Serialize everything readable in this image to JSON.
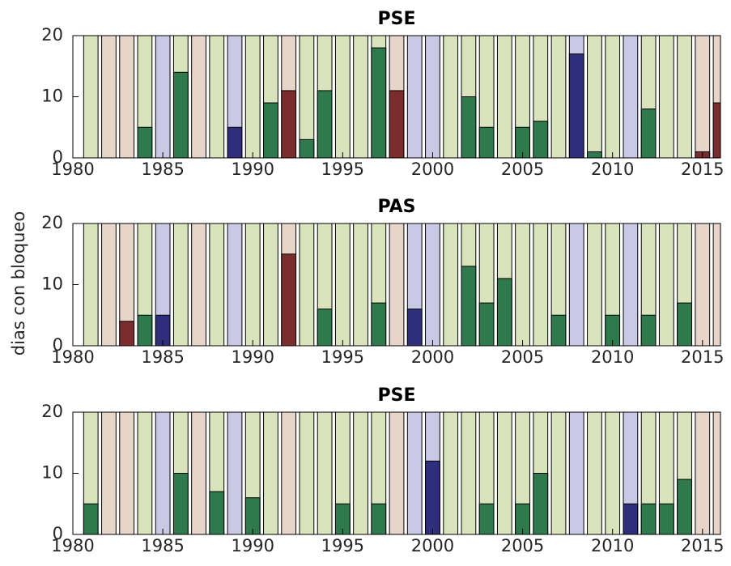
{
  "chart_data": [
    {
      "type": "bar",
      "title": "PSE",
      "x": [
        1981,
        1982,
        1983,
        1984,
        1985,
        1986,
        1987,
        1988,
        1989,
        1990,
        1991,
        1992,
        1993,
        1994,
        1995,
        1996,
        1997,
        1998,
        1999,
        2000,
        2001,
        2002,
        2003,
        2004,
        2005,
        2006,
        2007,
        2008,
        2009,
        2010,
        2011,
        2012,
        2013,
        2014,
        2015,
        2016
      ],
      "values": [
        0,
        0,
        0,
        5,
        0,
        14,
        0,
        0,
        5,
        0,
        9,
        11,
        3,
        11,
        0,
        0,
        18,
        11,
        0,
        0,
        0,
        10,
        5,
        0,
        5,
        6,
        0,
        17,
        1,
        0,
        0,
        8,
        0,
        0,
        1,
        9
      ],
      "colors": [
        "#2f7a4c",
        "#7b2d2d",
        "#7b2d2d",
        "#2f7a4c",
        "#2e2e7d",
        "#2f7a4c",
        "#7b2d2d",
        "#2f7a4c",
        "#2e2e7d",
        "#2f7a4c",
        "#2f7a4c",
        "#7b2d2d",
        "#2f7a4c",
        "#2f7a4c",
        "#2f7a4c",
        "#2f7a4c",
        "#2f7a4c",
        "#7b2d2d",
        "#2e2e7d",
        "#2e2e7d",
        "#2f7a4c",
        "#2f7a4c",
        "#2f7a4c",
        "#2f7a4c",
        "#2f7a4c",
        "#2f7a4c",
        "#2f7a4c",
        "#2e2e7d",
        "#2f7a4c",
        "#2f7a4c",
        "#2e2e7d",
        "#2f7a4c",
        "#2f7a4c",
        "#2f7a4c",
        "#7b2d2d",
        "#7b2d2d"
      ],
      "background_colors": [
        "#d9e4bd",
        "#e6d5c8",
        "#e6d5c8",
        "#d9e4bd",
        "#c9c9e5",
        "#d9e4bd",
        "#e6d5c8",
        "#d9e4bd",
        "#c9c9e5",
        "#d9e4bd",
        "#d9e4bd",
        "#e6d5c8",
        "#d9e4bd",
        "#d9e4bd",
        "#d9e4bd",
        "#d9e4bd",
        "#d9e4bd",
        "#e6d5c8",
        "#c9c9e5",
        "#c9c9e5",
        "#d9e4bd",
        "#d9e4bd",
        "#d9e4bd",
        "#d9e4bd",
        "#d9e4bd",
        "#d9e4bd",
        "#d9e4bd",
        "#c9c9e5",
        "#d9e4bd",
        "#d9e4bd",
        "#c9c9e5",
        "#d9e4bd",
        "#d9e4bd",
        "#d9e4bd",
        "#e6d5c8",
        "#e6d5c8"
      ],
      "xlim": [
        1980,
        2016
      ],
      "xticks": [
        1980,
        1985,
        1990,
        1995,
        2000,
        2005,
        2010,
        2015
      ],
      "ylim": [
        0,
        20
      ],
      "yticks": [
        0,
        10,
        20
      ]
    },
    {
      "type": "bar",
      "title": "PAS",
      "ylabel": "dias con bloqueo",
      "x": [
        1981,
        1982,
        1983,
        1984,
        1985,
        1986,
        1987,
        1988,
        1989,
        1990,
        1991,
        1992,
        1993,
        1994,
        1995,
        1996,
        1997,
        1998,
        1999,
        2000,
        2001,
        2002,
        2003,
        2004,
        2005,
        2006,
        2007,
        2008,
        2009,
        2010,
        2011,
        2012,
        2013,
        2014,
        2015,
        2016
      ],
      "values": [
        0,
        0,
        4,
        5,
        5,
        0,
        0,
        0,
        0,
        0,
        0,
        15,
        0,
        6,
        0,
        0,
        7,
        0,
        6,
        0,
        0,
        13,
        7,
        11,
        0,
        0,
        5,
        0,
        0,
        5,
        0,
        5,
        0,
        7,
        0,
        0
      ],
      "colors": [
        "#2f7a4c",
        "#7b2d2d",
        "#7b2d2d",
        "#2f7a4c",
        "#2e2e7d",
        "#2f7a4c",
        "#7b2d2d",
        "#2f7a4c",
        "#2e2e7d",
        "#2f7a4c",
        "#2f7a4c",
        "#7b2d2d",
        "#2f7a4c",
        "#2f7a4c",
        "#2f7a4c",
        "#2f7a4c",
        "#2f7a4c",
        "#7b2d2d",
        "#2e2e7d",
        "#2e2e7d",
        "#2f7a4c",
        "#2f7a4c",
        "#2f7a4c",
        "#2f7a4c",
        "#2f7a4c",
        "#2f7a4c",
        "#2f7a4c",
        "#2e2e7d",
        "#2f7a4c",
        "#2f7a4c",
        "#2e2e7d",
        "#2f7a4c",
        "#2f7a4c",
        "#2f7a4c",
        "#7b2d2d",
        "#7b2d2d"
      ],
      "background_colors": [
        "#d9e4bd",
        "#e6d5c8",
        "#e6d5c8",
        "#d9e4bd",
        "#c9c9e5",
        "#d9e4bd",
        "#e6d5c8",
        "#d9e4bd",
        "#c9c9e5",
        "#d9e4bd",
        "#d9e4bd",
        "#e6d5c8",
        "#d9e4bd",
        "#d9e4bd",
        "#d9e4bd",
        "#d9e4bd",
        "#d9e4bd",
        "#e6d5c8",
        "#c9c9e5",
        "#c9c9e5",
        "#d9e4bd",
        "#d9e4bd",
        "#d9e4bd",
        "#d9e4bd",
        "#d9e4bd",
        "#d9e4bd",
        "#d9e4bd",
        "#c9c9e5",
        "#d9e4bd",
        "#d9e4bd",
        "#c9c9e5",
        "#d9e4bd",
        "#d9e4bd",
        "#d9e4bd",
        "#e6d5c8",
        "#e6d5c8"
      ],
      "xlim": [
        1980,
        2016
      ],
      "xticks": [
        1980,
        1985,
        1990,
        1995,
        2000,
        2005,
        2010,
        2015
      ],
      "ylim": [
        0,
        20
      ],
      "yticks": [
        0,
        10,
        20
      ]
    },
    {
      "type": "bar",
      "title": "PSE",
      "x": [
        1981,
        1982,
        1983,
        1984,
        1985,
        1986,
        1987,
        1988,
        1989,
        1990,
        1991,
        1992,
        1993,
        1994,
        1995,
        1996,
        1997,
        1998,
        1999,
        2000,
        2001,
        2002,
        2003,
        2004,
        2005,
        2006,
        2007,
        2008,
        2009,
        2010,
        2011,
        2012,
        2013,
        2014,
        2015,
        2016
      ],
      "values": [
        5,
        0,
        0,
        0,
        0,
        10,
        0,
        7,
        0,
        6,
        0,
        0,
        0,
        0,
        5,
        0,
        5,
        0,
        0,
        12,
        0,
        0,
        5,
        0,
        5,
        10,
        0,
        0,
        0,
        0,
        5,
        5,
        5,
        9,
        0,
        0
      ],
      "colors": [
        "#2f7a4c",
        "#7b2d2d",
        "#7b2d2d",
        "#2f7a4c",
        "#2e2e7d",
        "#2f7a4c",
        "#7b2d2d",
        "#2f7a4c",
        "#2e2e7d",
        "#2f7a4c",
        "#2f7a4c",
        "#7b2d2d",
        "#2f7a4c",
        "#2f7a4c",
        "#2f7a4c",
        "#2f7a4c",
        "#2f7a4c",
        "#7b2d2d",
        "#2e2e7d",
        "#2e2e7d",
        "#2f7a4c",
        "#2f7a4c",
        "#2f7a4c",
        "#2f7a4c",
        "#2f7a4c",
        "#2f7a4c",
        "#2f7a4c",
        "#2e2e7d",
        "#2f7a4c",
        "#2f7a4c",
        "#2e2e7d",
        "#2f7a4c",
        "#2f7a4c",
        "#2f7a4c",
        "#7b2d2d",
        "#7b2d2d"
      ],
      "background_colors": [
        "#d9e4bd",
        "#e6d5c8",
        "#e6d5c8",
        "#d9e4bd",
        "#c9c9e5",
        "#d9e4bd",
        "#e6d5c8",
        "#d9e4bd",
        "#c9c9e5",
        "#d9e4bd",
        "#d9e4bd",
        "#e6d5c8",
        "#d9e4bd",
        "#d9e4bd",
        "#d9e4bd",
        "#d9e4bd",
        "#d9e4bd",
        "#e6d5c8",
        "#c9c9e5",
        "#c9c9e5",
        "#d9e4bd",
        "#d9e4bd",
        "#d9e4bd",
        "#d9e4bd",
        "#d9e4bd",
        "#d9e4bd",
        "#d9e4bd",
        "#c9c9e5",
        "#d9e4bd",
        "#d9e4bd",
        "#c9c9e5",
        "#d9e4bd",
        "#d9e4bd",
        "#d9e4bd",
        "#e6d5c8",
        "#e6d5c8"
      ],
      "xlim": [
        1980,
        2016
      ],
      "xticks": [
        1980,
        1985,
        1990,
        1995,
        2000,
        2005,
        2010,
        2015
      ],
      "ylim": [
        0,
        20
      ],
      "yticks": [
        0,
        10,
        20
      ]
    }
  ]
}
